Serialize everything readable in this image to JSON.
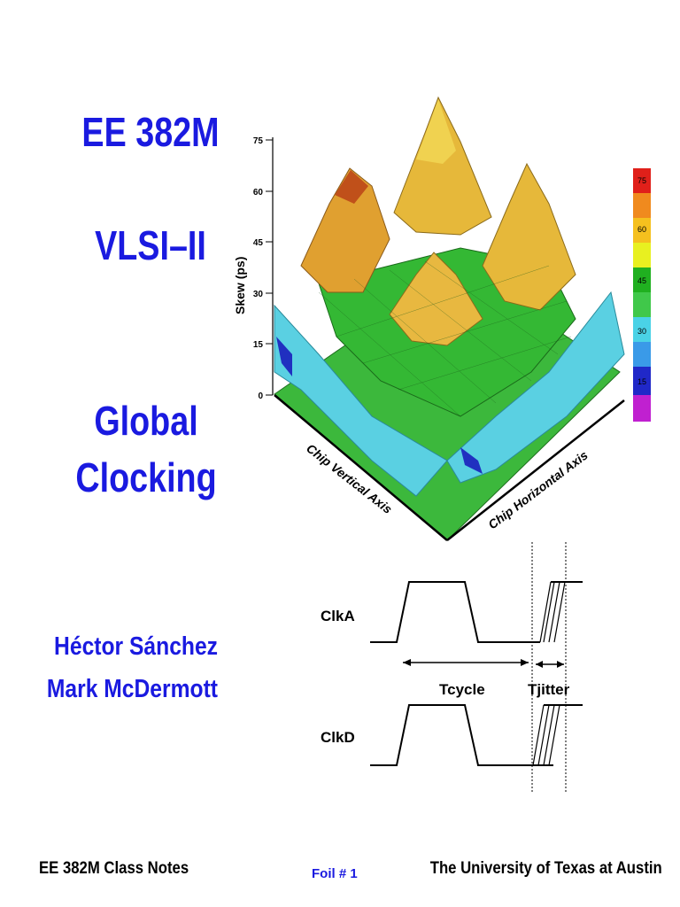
{
  "slide": {
    "course": "EE 382M",
    "subject": "VLSI–II",
    "topic_line1": "Global",
    "topic_line2": "Clocking",
    "authors": [
      "Héctor Sánchez",
      "Mark McDermott"
    ]
  },
  "surface_plot": {
    "z_axis_label": "Skew (ps)",
    "z_ticks": [
      "75",
      "60",
      "45",
      "30",
      "15",
      "0"
    ],
    "x_axis_label": "Chip Vertical Axis",
    "y_axis_label": "Chip Horizontal Axis",
    "colorbar_labels": [
      "75",
      "60",
      "45",
      "30",
      "15"
    ],
    "colorbar_colors": [
      "#e0201a",
      "#f08a1e",
      "#f5d21e",
      "#e8f020",
      "#20b020",
      "#34c84a",
      "#4ad2e6",
      "#3a9ae8",
      "#2028c8",
      "#c020d0"
    ]
  },
  "timing": {
    "clk_a_label": "ClkA",
    "clk_d_label": "ClkD",
    "tcycle_label": "Tcycle",
    "tjitter_label": "Tjitter"
  },
  "footer": {
    "left": "EE 382M Class Notes",
    "center": "Foil # 1",
    "right": "The University of Texas at Austin"
  }
}
